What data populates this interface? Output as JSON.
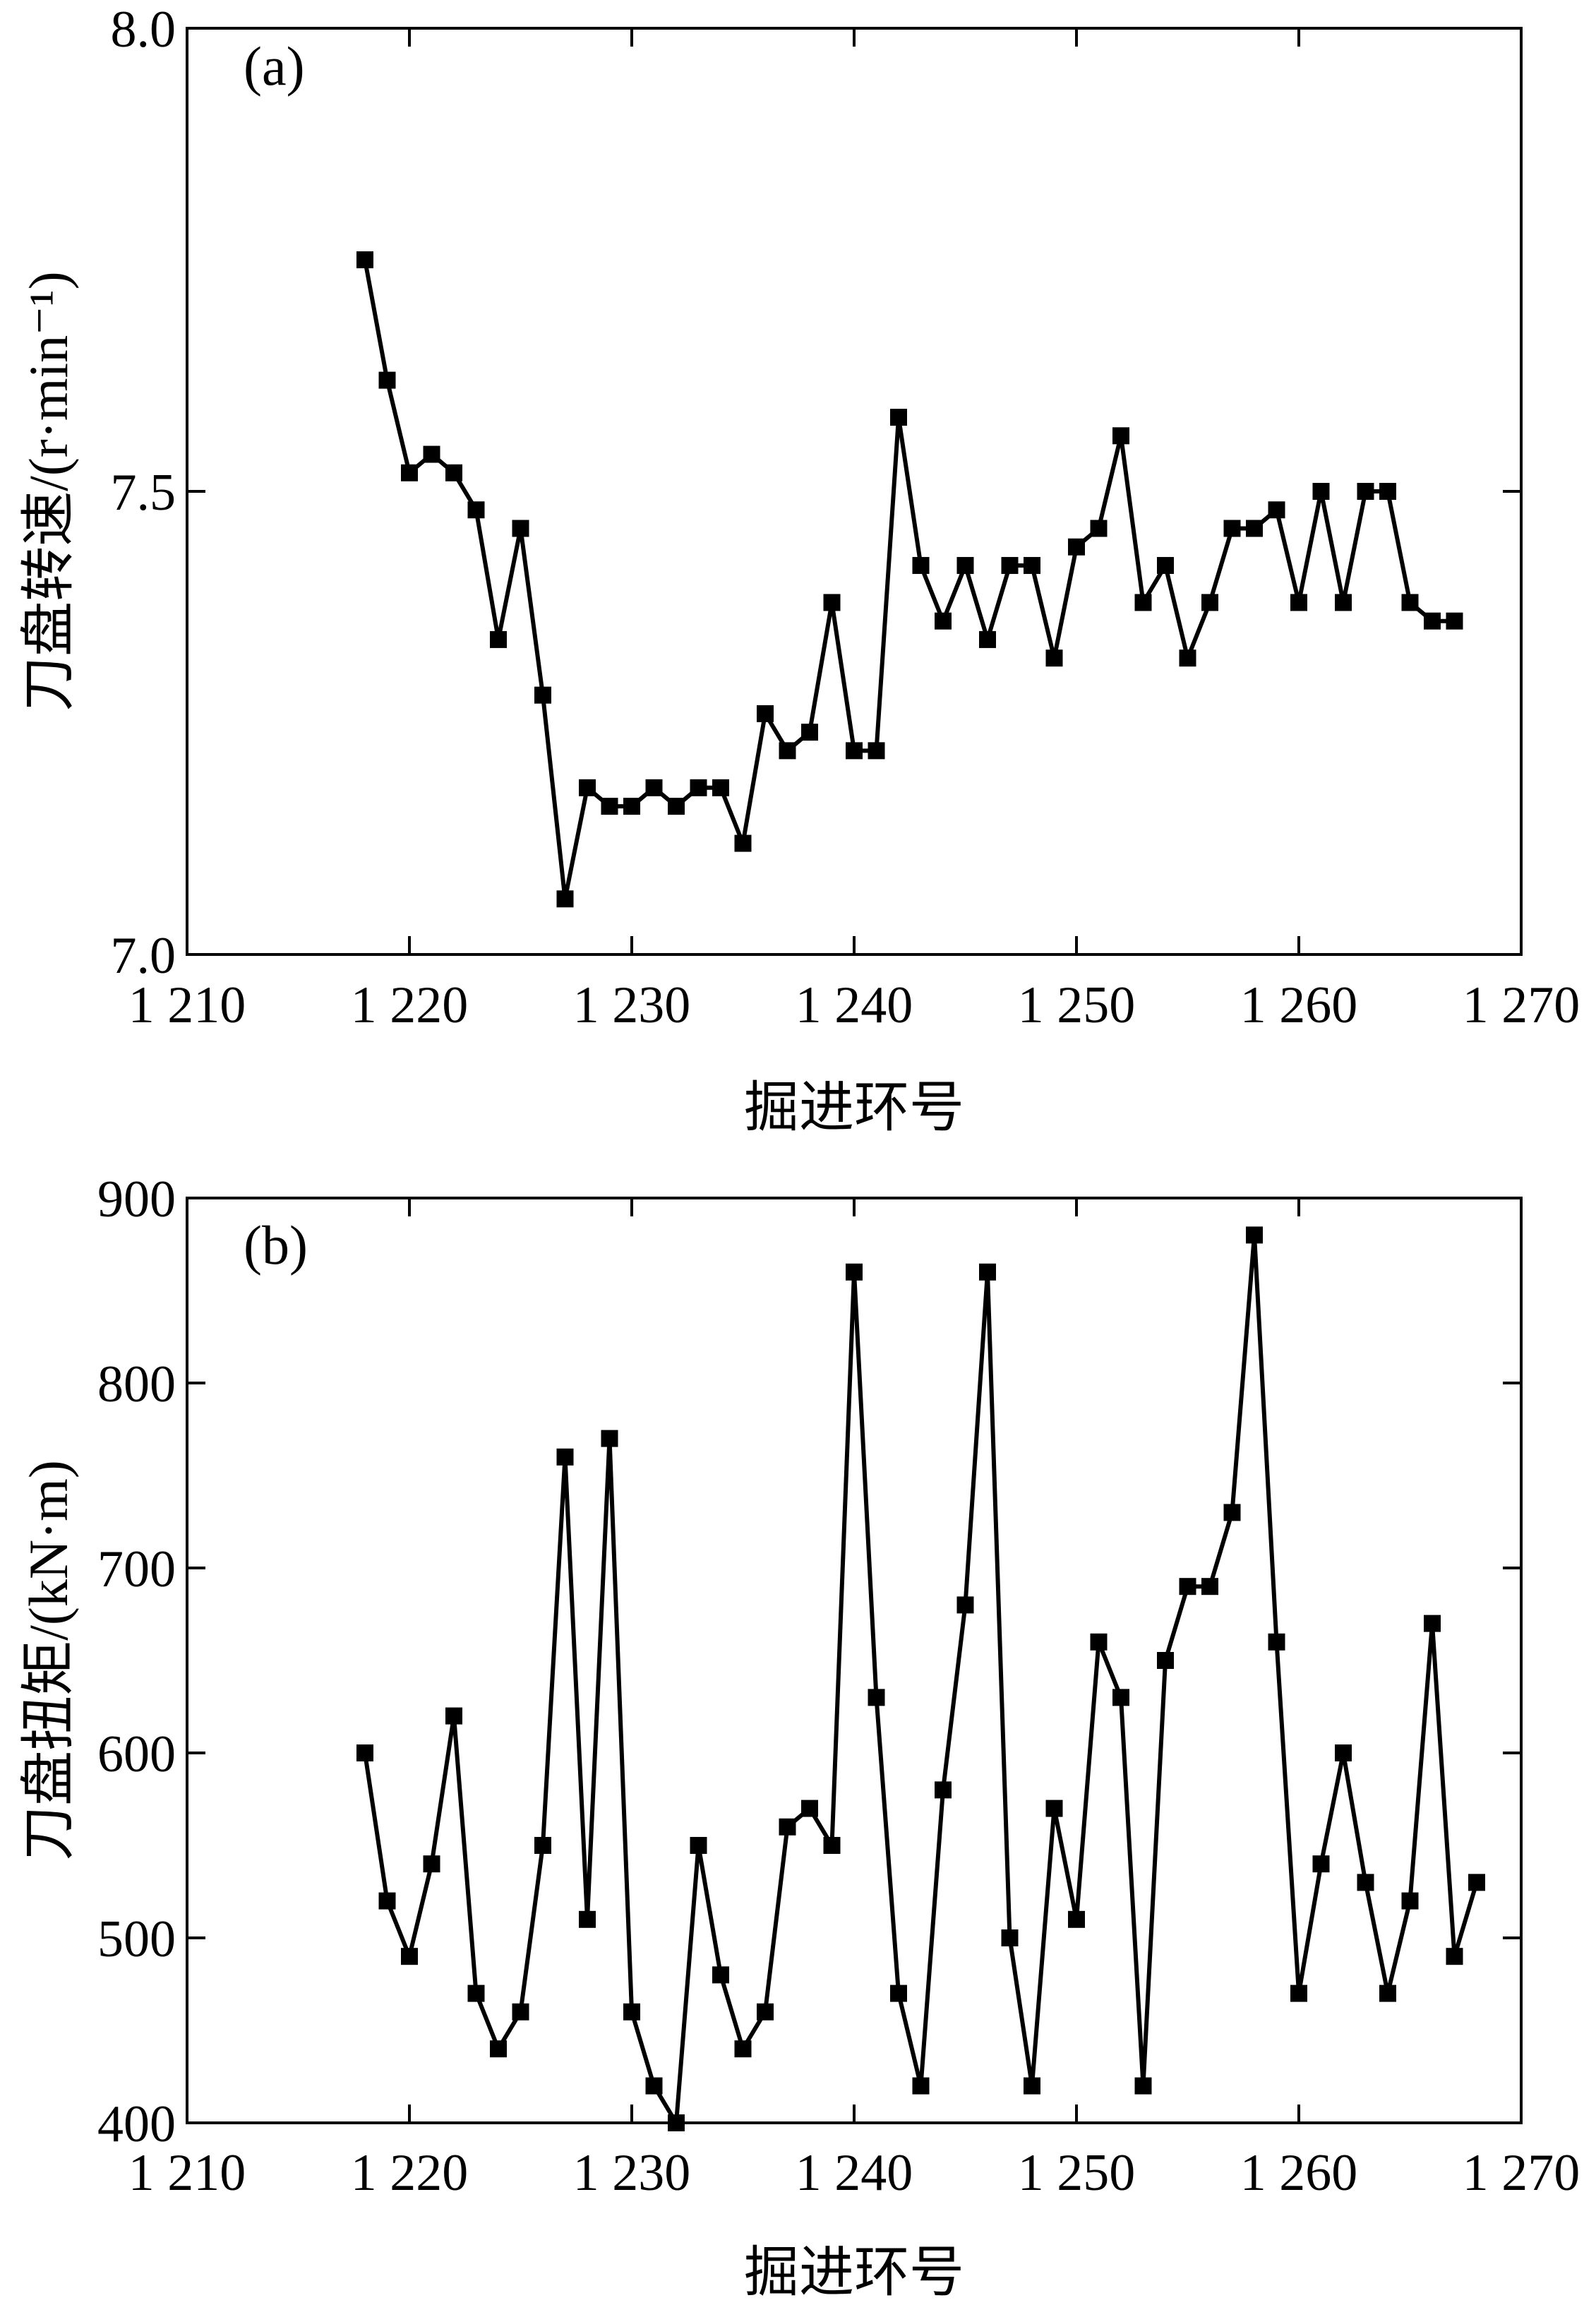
{
  "chart_data": [
    {
      "type": "line",
      "panel_label": "(a)",
      "xlabel": "掘进环号",
      "ylabel": "刀盘转速/(r·min⁻¹)",
      "xlim": [
        1210,
        1270
      ],
      "ylim": [
        7.0,
        8.0
      ],
      "x_ticks": [
        1210,
        1220,
        1230,
        1240,
        1250,
        1260,
        1270
      ],
      "x_tick_labels": [
        "1 210",
        "1 220",
        "1 230",
        "1 240",
        "1 250",
        "1 260",
        "1 270"
      ],
      "y_ticks": [
        7.0,
        7.5,
        8.0
      ],
      "y_tick_labels": [
        "7.0",
        "7.5",
        "8.0"
      ],
      "grid": false,
      "marker": "square",
      "color": "#000000",
      "x": [
        1218,
        1219,
        1220,
        1221,
        1222,
        1223,
        1224,
        1225,
        1226,
        1227,
        1228,
        1229,
        1230,
        1231,
        1232,
        1233,
        1234,
        1235,
        1236,
        1237,
        1238,
        1239,
        1240,
        1241,
        1242,
        1243,
        1244,
        1245,
        1246,
        1247,
        1248,
        1249,
        1250,
        1251,
        1252,
        1253,
        1254,
        1255,
        1256,
        1257,
        1258,
        1259,
        1260,
        1261,
        1262,
        1263,
        1264,
        1265,
        1266,
        1267
      ],
      "y": [
        7.75,
        7.62,
        7.52,
        7.54,
        7.52,
        7.48,
        7.34,
        7.46,
        7.28,
        7.06,
        7.18,
        7.16,
        7.16,
        7.18,
        7.16,
        7.18,
        7.18,
        7.12,
        7.26,
        7.22,
        7.24,
        7.38,
        7.22,
        7.22,
        7.58,
        7.42,
        7.36,
        7.42,
        7.34,
        7.42,
        7.42,
        7.32,
        7.44,
        7.46,
        7.56,
        7.38,
        7.42,
        7.32,
        7.38,
        7.46,
        7.46,
        7.48,
        7.38,
        7.5,
        7.38,
        7.5,
        7.5,
        7.38,
        7.36,
        7.36
      ]
    },
    {
      "type": "line",
      "panel_label": "(b)",
      "xlabel": "掘进环号",
      "ylabel": "刀盘扭矩/(kN·m)",
      "xlim": [
        1210,
        1270
      ],
      "ylim": [
        400,
        900
      ],
      "x_ticks": [
        1210,
        1220,
        1230,
        1240,
        1250,
        1260,
        1270
      ],
      "x_tick_labels": [
        "1 210",
        "1 220",
        "1 230",
        "1 240",
        "1 250",
        "1 260",
        "1 270"
      ],
      "y_ticks": [
        400,
        500,
        600,
        700,
        800,
        900
      ],
      "y_tick_labels": [
        "400",
        "500",
        "600",
        "700",
        "800",
        "900"
      ],
      "grid": false,
      "marker": "square",
      "color": "#000000",
      "x": [
        1218,
        1219,
        1220,
        1221,
        1222,
        1223,
        1224,
        1225,
        1226,
        1227,
        1228,
        1229,
        1230,
        1231,
        1232,
        1233,
        1234,
        1235,
        1236,
        1237,
        1238,
        1239,
        1240,
        1241,
        1242,
        1243,
        1244,
        1245,
        1246,
        1247,
        1248,
        1249,
        1250,
        1251,
        1252,
        1253,
        1254,
        1255,
        1256,
        1257,
        1258,
        1259,
        1260,
        1261,
        1262,
        1263,
        1264,
        1265,
        1266,
        1267,
        1268
      ],
      "y": [
        600,
        520,
        490,
        540,
        620,
        470,
        440,
        460,
        550,
        760,
        510,
        770,
        460,
        420,
        400,
        550,
        480,
        440,
        460,
        560,
        570,
        550,
        860,
        630,
        470,
        420,
        580,
        680,
        860,
        500,
        420,
        570,
        510,
        660,
        630,
        420,
        650,
        690,
        690,
        730,
        880,
        660,
        470,
        540,
        600,
        530,
        470,
        520,
        670,
        490,
        530
      ]
    }
  ]
}
